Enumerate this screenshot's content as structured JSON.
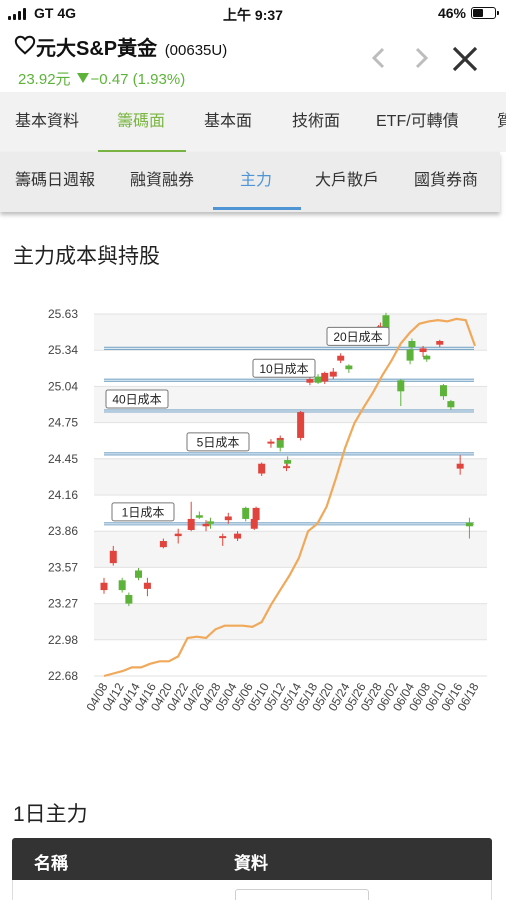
{
  "status_bar": {
    "carrier": "GT  4G",
    "time": "上午 9:37",
    "battery": "46%",
    "battery_level": 0.46
  },
  "header": {
    "name": "元大S&P黃金",
    "code": "(00635U)",
    "price": "23.92元",
    "change": "−0.47 (1.93%)",
    "colors": {
      "down": "#5db33a",
      "up": "#e0443c"
    }
  },
  "tabs_primary": [
    {
      "label": "基本資料",
      "active": false
    },
    {
      "label": "籌碼面",
      "active": true
    },
    {
      "label": "基本面",
      "active": false
    },
    {
      "label": "技術面",
      "active": false
    },
    {
      "label": "ETF/可轉債",
      "active": false
    },
    {
      "label": "質",
      "active": false
    }
  ],
  "tabs_secondary": [
    {
      "label": "籌碼日週報",
      "active": false
    },
    {
      "label": "融資融券",
      "active": false
    },
    {
      "label": "主力",
      "active": true
    },
    {
      "label": "大戶散戶",
      "active": false
    },
    {
      "label": "國貨券商",
      "active": false
    }
  ],
  "section_title": "主力成本與持股",
  "section2_title": "1日主力",
  "table": {
    "headers": [
      "名稱",
      "資料"
    ]
  },
  "chart_data": {
    "type": "candlestick",
    "y_ticks": [
      "25.63",
      "25.34",
      "25.04",
      "24.75",
      "24.45",
      "24.16",
      "23.86",
      "23.57",
      "23.27",
      "22.98",
      "22.68"
    ],
    "ylim": [
      22.68,
      25.63
    ],
    "x_ticks": [
      "04/08",
      "04/12",
      "04/14",
      "04/16",
      "04/20",
      "04/22",
      "04/26",
      "04/28",
      "05/04",
      "05/06",
      "05/10",
      "05/12",
      "05/14",
      "05/18",
      "05/20",
      "05/24",
      "05/26",
      "05/28",
      "06/02",
      "06/04",
      "06/08",
      "06/10",
      "06/16",
      "06/18"
    ],
    "cost_lines": [
      {
        "label": "20日成本",
        "value": 25.35
      },
      {
        "label": "10日成本",
        "value": 25.09
      },
      {
        "label": "40日成本",
        "value": 24.84
      },
      {
        "label": "5日成本",
        "value": 24.49
      },
      {
        "label": "1日成本",
        "value": 23.92
      }
    ],
    "holding_line": [
      22.68,
      22.7,
      22.72,
      22.75,
      22.75,
      22.78,
      22.8,
      22.8,
      22.84,
      22.99,
      23.0,
      22.99,
      23.06,
      23.09,
      23.09,
      23.09,
      23.08,
      23.12,
      23.26,
      23.38,
      23.5,
      23.64,
      23.86,
      23.92,
      24.06,
      24.29,
      24.54,
      24.74,
      24.87,
      24.99,
      25.13,
      25.25,
      25.39,
      25.48,
      25.55,
      25.57,
      25.58,
      25.57,
      25.59,
      25.58,
      25.37
    ],
    "candles": [
      {
        "o": 23.38,
        "c": 23.44,
        "h": 23.48,
        "l": 23.35
      },
      {
        "o": 23.6,
        "c": 23.7,
        "h": 23.74,
        "l": 23.58
      },
      {
        "o": 23.46,
        "c": 23.38,
        "h": 23.48,
        "l": 23.36
      },
      {
        "o": 23.34,
        "c": 23.27,
        "h": 23.36,
        "l": 23.25
      },
      {
        "o": 23.54,
        "c": 23.48,
        "h": 23.56,
        "l": 23.46
      },
      {
        "o": 23.39,
        "c": 23.44,
        "h": 23.48,
        "l": 23.33
      },
      {
        "o": 23.73,
        "c": 23.78,
        "h": 23.8,
        "l": 23.72
      },
      {
        "o": 23.82,
        "c": 23.84,
        "h": 23.88,
        "l": 23.76
      },
      {
        "o": 23.87,
        "c": 23.96,
        "h": 24.1,
        "l": 23.86
      },
      {
        "o": 23.99,
        "c": 23.97,
        "h": 24.02,
        "l": 23.96
      },
      {
        "o": 23.9,
        "c": 23.92,
        "h": 23.95,
        "l": 23.86
      },
      {
        "o": 23.94,
        "c": 23.92,
        "h": 23.97,
        "l": 23.88
      },
      {
        "o": 23.81,
        "c": 23.82,
        "h": 23.84,
        "l": 23.74
      },
      {
        "o": 23.95,
        "c": 23.98,
        "h": 24.01,
        "l": 23.92
      },
      {
        "o": 23.8,
        "c": 23.84,
        "h": 23.86,
        "l": 23.78
      },
      {
        "o": 24.05,
        "c": 23.96,
        "h": 24.06,
        "l": 23.94
      },
      {
        "o": 23.88,
        "c": 23.96,
        "h": 23.97,
        "l": 23.87
      },
      {
        "o": 23.95,
        "c": 24.05,
        "h": 24.06,
        "l": 23.92
      },
      {
        "o": 24.33,
        "c": 24.41,
        "h": 24.42,
        "l": 24.31
      },
      {
        "o": 24.58,
        "c": 24.59,
        "h": 24.61,
        "l": 24.54
      },
      {
        "o": 24.6,
        "c": 24.62,
        "h": 24.64,
        "l": 24.56
      },
      {
        "o": 24.6,
        "c": 24.54,
        "h": 24.61,
        "l": 24.51
      },
      {
        "o": 24.38,
        "c": 24.39,
        "h": 24.42,
        "l": 24.35
      },
      {
        "o": 24.44,
        "c": 24.41,
        "h": 24.47,
        "l": 24.39
      },
      {
        "o": 24.62,
        "c": 24.83,
        "h": 24.84,
        "l": 24.6
      },
      {
        "o": 25.07,
        "c": 25.1,
        "h": 25.12,
        "l": 25.05
      },
      {
        "o": 25.12,
        "c": 25.07,
        "h": 25.14,
        "l": 25.06
      },
      {
        "o": 25.08,
        "c": 25.15,
        "h": 25.16,
        "l": 25.06
      },
      {
        "o": 25.12,
        "c": 25.16,
        "h": 25.19,
        "l": 25.1
      },
      {
        "o": 25.25,
        "c": 25.29,
        "h": 25.31,
        "l": 25.23
      },
      {
        "o": 25.21,
        "c": 25.18,
        "h": 25.22,
        "l": 25.15
      },
      {
        "o": 25.47,
        "c": 25.49,
        "h": 25.51,
        "l": 25.45
      },
      {
        "o": 25.48,
        "c": 25.5,
        "h": 25.52,
        "l": 25.46
      },
      {
        "o": 25.49,
        "c": 25.52,
        "h": 25.54,
        "l": 25.48
      },
      {
        "o": 25.5,
        "c": 25.53,
        "h": 25.56,
        "l": 25.48
      },
      {
        "o": 25.62,
        "c": 25.49,
        "h": 25.64,
        "l": 25.48
      },
      {
        "o": 25.09,
        "c": 25.0,
        "h": 25.1,
        "l": 24.88
      },
      {
        "o": 25.34,
        "c": 25.25,
        "h": 25.35,
        "l": 25.22
      },
      {
        "o": 25.41,
        "c": 25.36,
        "h": 25.43,
        "l": 25.34
      },
      {
        "o": 25.32,
        "c": 25.35,
        "h": 25.37,
        "l": 25.28
      },
      {
        "o": 25.29,
        "c": 25.26,
        "h": 25.3,
        "l": 25.24
      },
      {
        "o": 25.38,
        "c": 25.41,
        "h": 25.42,
        "l": 25.36
      },
      {
        "o": 25.05,
        "c": 24.96,
        "h": 25.06,
        "l": 24.93
      },
      {
        "o": 24.92,
        "c": 24.87,
        "h": 24.93,
        "l": 24.85
      },
      {
        "o": 24.37,
        "c": 24.41,
        "h": 24.48,
        "l": 24.32
      },
      {
        "o": 23.93,
        "c": 23.9,
        "h": 23.97,
        "l": 23.8
      }
    ],
    "candle_x": [
      0.0,
      0.025,
      0.049,
      0.067,
      0.093,
      0.117,
      0.16,
      0.2,
      0.235,
      0.257,
      0.275,
      0.287,
      0.32,
      0.335,
      0.36,
      0.382,
      0.405,
      0.41,
      0.425,
      0.45,
      0.475,
      0.475,
      0.492,
      0.495,
      0.53,
      0.555,
      0.577,
      0.595,
      0.618,
      0.638,
      0.66,
      0.69,
      0.72,
      0.74,
      0.745,
      0.76,
      0.8,
      0.825,
      0.83,
      0.86,
      0.87,
      0.905,
      0.915,
      0.935,
      0.96,
      0.985
    ],
    "grid": true
  }
}
